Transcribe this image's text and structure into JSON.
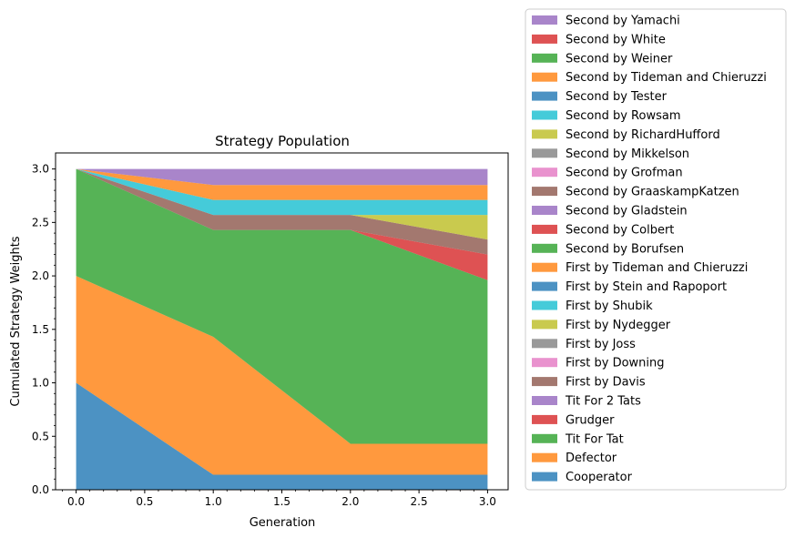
{
  "chart_data": {
    "type": "area",
    "title": "Strategy Population",
    "xlabel": "Generation",
    "ylabel": "Cumulated Strategy Weights",
    "x": [
      0,
      1,
      2,
      3
    ],
    "xlim": [
      -0.15,
      3.15
    ],
    "ylim": [
      0,
      3.15
    ],
    "xticks": [
      "0.0",
      "0.5",
      "1.0",
      "1.5",
      "2.0",
      "2.5",
      "3.0"
    ],
    "yticks": [
      "0.0",
      "0.5",
      "1.0",
      "1.5",
      "2.0",
      "2.5",
      "3.0"
    ],
    "stacked": true,
    "grid": false,
    "legend_position": "outside-right",
    "series": [
      {
        "name": "Cooperator",
        "color": "#1f77b4",
        "values": [
          1.0,
          0.14,
          0.14,
          0.14
        ]
      },
      {
        "name": "Defector",
        "color": "#ff7f0e",
        "values": [
          1.0,
          1.29,
          0.29,
          0.29
        ]
      },
      {
        "name": "Tit For Tat",
        "color": "#2ca02c",
        "values": [
          1.0,
          1.0,
          2.0,
          1.53
        ]
      },
      {
        "name": "Grudger",
        "color": "#d62728",
        "values": [
          0,
          0,
          0,
          0.24
        ]
      },
      {
        "name": "Tit For 2 Tats",
        "color": "#9467bd",
        "values": [
          0,
          0,
          0,
          0
        ]
      },
      {
        "name": "First by Davis",
        "color": "#8c564b",
        "values": [
          0,
          0.14,
          0.14,
          0.14
        ]
      },
      {
        "name": "First by Downing",
        "color": "#e377c2",
        "values": [
          0,
          0,
          0,
          0
        ]
      },
      {
        "name": "First by Joss",
        "color": "#7f7f7f",
        "values": [
          0,
          0,
          0,
          0
        ]
      },
      {
        "name": "First by Nydegger",
        "color": "#bcbd22",
        "values": [
          0,
          0,
          0,
          0.23
        ]
      },
      {
        "name": "First by Shubik",
        "color": "#17becf",
        "values": [
          0,
          0.14,
          0.14,
          0.14
        ]
      },
      {
        "name": "First by Stein and Rapoport",
        "color": "#1f77b4",
        "values": [
          0,
          0,
          0,
          0
        ]
      },
      {
        "name": "First by Tideman and Chieruzzi",
        "color": "#ff7f0e",
        "values": [
          0,
          0.14,
          0.14,
          0.14
        ]
      },
      {
        "name": "Second by Borufsen",
        "color": "#2ca02c",
        "values": [
          0,
          0,
          0,
          0
        ]
      },
      {
        "name": "Second by Colbert",
        "color": "#d62728",
        "values": [
          0,
          0,
          0,
          0
        ]
      },
      {
        "name": "Second by Gladstein",
        "color": "#9467bd",
        "values": [
          0,
          0,
          0,
          0
        ]
      },
      {
        "name": "Second by GraaskampKatzen",
        "color": "#8c564b",
        "values": [
          0,
          0,
          0,
          0
        ]
      },
      {
        "name": "Second by Grofman",
        "color": "#e377c2",
        "values": [
          0,
          0,
          0,
          0
        ]
      },
      {
        "name": "Second by Mikkelson",
        "color": "#7f7f7f",
        "values": [
          0,
          0,
          0,
          0
        ]
      },
      {
        "name": "Second by RichardHufford",
        "color": "#bcbd22",
        "values": [
          0,
          0,
          0,
          0
        ]
      },
      {
        "name": "Second by Rowsam",
        "color": "#17becf",
        "values": [
          0,
          0,
          0,
          0
        ]
      },
      {
        "name": "Second by Tester",
        "color": "#1f77b4",
        "values": [
          0,
          0,
          0,
          0
        ]
      },
      {
        "name": "Second by Tideman and Chieruzzi",
        "color": "#ff7f0e",
        "values": [
          0,
          0,
          0,
          0
        ]
      },
      {
        "name": "Second by Weiner",
        "color": "#2ca02c",
        "values": [
          0,
          0,
          0,
          0
        ]
      },
      {
        "name": "Second by White",
        "color": "#d62728",
        "values": [
          0,
          0,
          0,
          0
        ]
      },
      {
        "name": "Second by Yamachi",
        "color": "#9467bd",
        "values": [
          0,
          0.15,
          0.15,
          0.15
        ]
      }
    ]
  }
}
